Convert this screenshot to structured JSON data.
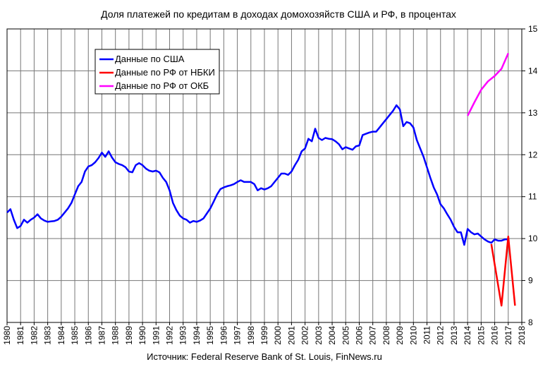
{
  "chart_data": {
    "type": "line",
    "title": "Доля платежей по кредитам  в доходах  домохозяйств  США и РФ, в процентах",
    "source": "Источник: Federal Reserve Bank of St. Louis, FinNews.ru",
    "xlabel": "",
    "ylabel": "",
    "xlim": [
      1980,
      2018
    ],
    "ylim": [
      8,
      15
    ],
    "x_ticks": [
      "1980",
      "1981",
      "1982",
      "1983",
      "1984",
      "1985",
      "1986",
      "1987",
      "1988",
      "1989",
      "1990",
      "1991",
      "1992",
      "1993",
      "1994",
      "1995",
      "1996",
      "1997",
      "1998",
      "1999",
      "2000",
      "2001",
      "2002",
      "2003",
      "2004",
      "2005",
      "2006",
      "2007",
      "2008",
      "2009",
      "2010",
      "2011",
      "2012",
      "2013",
      "2014",
      "2015",
      "2016",
      "2017",
      "2018"
    ],
    "y_ticks": [
      "8",
      "9",
      "10",
      "11",
      "12",
      "13",
      "14",
      "15"
    ],
    "grid": true,
    "legend_placement": "top-left",
    "series": [
      {
        "name": "Данные по США",
        "color": "#0000ff",
        "points": [
          [
            1980.0,
            10.62
          ],
          [
            1980.25,
            10.7
          ],
          [
            1980.5,
            10.45
          ],
          [
            1980.75,
            10.25
          ],
          [
            1981.0,
            10.3
          ],
          [
            1981.25,
            10.45
          ],
          [
            1981.5,
            10.38
          ],
          [
            1981.75,
            10.45
          ],
          [
            1982.0,
            10.5
          ],
          [
            1982.25,
            10.58
          ],
          [
            1982.5,
            10.48
          ],
          [
            1982.75,
            10.43
          ],
          [
            1983.0,
            10.4
          ],
          [
            1983.25,
            10.41
          ],
          [
            1983.5,
            10.42
          ],
          [
            1983.75,
            10.45
          ],
          [
            1984.0,
            10.52
          ],
          [
            1984.25,
            10.62
          ],
          [
            1984.5,
            10.72
          ],
          [
            1984.75,
            10.85
          ],
          [
            1985.0,
            11.05
          ],
          [
            1985.25,
            11.25
          ],
          [
            1985.5,
            11.35
          ],
          [
            1985.75,
            11.6
          ],
          [
            1986.0,
            11.72
          ],
          [
            1986.25,
            11.75
          ],
          [
            1986.5,
            11.82
          ],
          [
            1986.75,
            11.92
          ],
          [
            1987.0,
            12.05
          ],
          [
            1987.25,
            11.95
          ],
          [
            1987.5,
            12.08
          ],
          [
            1987.75,
            11.93
          ],
          [
            1988.0,
            11.82
          ],
          [
            1988.25,
            11.78
          ],
          [
            1988.5,
            11.75
          ],
          [
            1988.75,
            11.7
          ],
          [
            1989.0,
            11.6
          ],
          [
            1989.25,
            11.58
          ],
          [
            1989.5,
            11.75
          ],
          [
            1989.75,
            11.8
          ],
          [
            1990.0,
            11.75
          ],
          [
            1990.25,
            11.67
          ],
          [
            1990.5,
            11.62
          ],
          [
            1990.75,
            11.6
          ],
          [
            1991.0,
            11.62
          ],
          [
            1991.25,
            11.58
          ],
          [
            1991.5,
            11.45
          ],
          [
            1991.75,
            11.35
          ],
          [
            1992.0,
            11.15
          ],
          [
            1992.25,
            10.85
          ],
          [
            1992.5,
            10.68
          ],
          [
            1992.75,
            10.55
          ],
          [
            1993.0,
            10.48
          ],
          [
            1993.25,
            10.45
          ],
          [
            1993.5,
            10.38
          ],
          [
            1993.75,
            10.42
          ],
          [
            1994.0,
            10.4
          ],
          [
            1994.25,
            10.43
          ],
          [
            1994.5,
            10.48
          ],
          [
            1994.75,
            10.6
          ],
          [
            1995.0,
            10.72
          ],
          [
            1995.25,
            10.88
          ],
          [
            1995.5,
            11.05
          ],
          [
            1995.75,
            11.18
          ],
          [
            1996.0,
            11.22
          ],
          [
            1996.25,
            11.25
          ],
          [
            1996.5,
            11.27
          ],
          [
            1996.75,
            11.3
          ],
          [
            1997.0,
            11.35
          ],
          [
            1997.25,
            11.39
          ],
          [
            1997.5,
            11.35
          ],
          [
            1997.75,
            11.35
          ],
          [
            1998.0,
            11.35
          ],
          [
            1998.25,
            11.3
          ],
          [
            1998.5,
            11.15
          ],
          [
            1998.75,
            11.2
          ],
          [
            1999.0,
            11.17
          ],
          [
            1999.25,
            11.2
          ],
          [
            1999.5,
            11.25
          ],
          [
            1999.75,
            11.35
          ],
          [
            2000.0,
            11.45
          ],
          [
            2000.25,
            11.55
          ],
          [
            2000.5,
            11.55
          ],
          [
            2000.75,
            11.52
          ],
          [
            2001.0,
            11.6
          ],
          [
            2001.25,
            11.75
          ],
          [
            2001.5,
            11.88
          ],
          [
            2001.75,
            12.08
          ],
          [
            2002.0,
            12.15
          ],
          [
            2002.25,
            12.38
          ],
          [
            2002.5,
            12.32
          ],
          [
            2002.75,
            12.62
          ],
          [
            2003.0,
            12.4
          ],
          [
            2003.25,
            12.35
          ],
          [
            2003.5,
            12.4
          ],
          [
            2003.75,
            12.38
          ],
          [
            2004.0,
            12.37
          ],
          [
            2004.25,
            12.32
          ],
          [
            2004.5,
            12.25
          ],
          [
            2004.75,
            12.13
          ],
          [
            2005.0,
            12.18
          ],
          [
            2005.25,
            12.15
          ],
          [
            2005.5,
            12.12
          ],
          [
            2005.75,
            12.2
          ],
          [
            2006.0,
            12.22
          ],
          [
            2006.25,
            12.47
          ],
          [
            2006.5,
            12.5
          ],
          [
            2006.75,
            12.53
          ],
          [
            2007.0,
            12.55
          ],
          [
            2007.25,
            12.55
          ],
          [
            2007.5,
            12.65
          ],
          [
            2007.75,
            12.75
          ],
          [
            2008.0,
            12.85
          ],
          [
            2008.25,
            12.95
          ],
          [
            2008.5,
            13.05
          ],
          [
            2008.75,
            13.18
          ],
          [
            2009.0,
            13.08
          ],
          [
            2009.25,
            12.68
          ],
          [
            2009.5,
            12.78
          ],
          [
            2009.75,
            12.75
          ],
          [
            2010.0,
            12.65
          ],
          [
            2010.25,
            12.35
          ],
          [
            2010.5,
            12.15
          ],
          [
            2010.75,
            11.95
          ],
          [
            2011.0,
            11.7
          ],
          [
            2011.25,
            11.45
          ],
          [
            2011.5,
            11.22
          ],
          [
            2011.75,
            11.05
          ],
          [
            2012.0,
            10.82
          ],
          [
            2012.25,
            10.72
          ],
          [
            2012.5,
            10.58
          ],
          [
            2012.75,
            10.45
          ],
          [
            2013.0,
            10.28
          ],
          [
            2013.25,
            10.15
          ],
          [
            2013.5,
            10.15
          ],
          [
            2013.75,
            9.85
          ],
          [
            2014.0,
            10.23
          ],
          [
            2014.25,
            10.15
          ],
          [
            2014.5,
            10.1
          ],
          [
            2014.75,
            10.12
          ],
          [
            2015.0,
            10.05
          ],
          [
            2015.25,
            9.98
          ],
          [
            2015.5,
            9.93
          ],
          [
            2015.75,
            9.9
          ],
          [
            2016.0,
            9.98
          ],
          [
            2016.25,
            9.95
          ],
          [
            2016.5,
            9.95
          ],
          [
            2016.75,
            9.98
          ],
          [
            2017.0,
            9.98
          ]
        ]
      },
      {
        "name": "Данные по РФ от НБКИ",
        "color": "#ff0000",
        "points": [
          [
            2015.75,
            9.87
          ],
          [
            2016.5,
            8.4
          ],
          [
            2017.0,
            10.05
          ],
          [
            2017.5,
            8.4
          ]
        ]
      },
      {
        "name": "Данные по РФ от ОКБ",
        "color": "#ff00ff",
        "points": [
          [
            2014.0,
            12.93
          ],
          [
            2014.5,
            13.25
          ],
          [
            2015.0,
            13.55
          ],
          [
            2015.5,
            13.75
          ],
          [
            2016.0,
            13.88
          ],
          [
            2016.5,
            14.05
          ],
          [
            2017.0,
            14.42
          ]
        ]
      }
    ]
  }
}
